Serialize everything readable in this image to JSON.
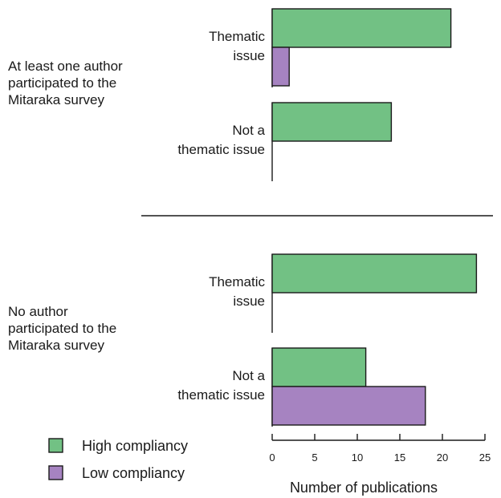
{
  "chart_data": {
    "type": "bar",
    "orientation": "horizontal",
    "xlabel": "Number of publications",
    "xlim": [
      0,
      25
    ],
    "xticks": [
      0,
      5,
      10,
      15,
      20,
      25
    ],
    "grid": false,
    "legend_position": "bottom-left",
    "colors": {
      "High compliancy": "#72c184",
      "Low compliancy": "#a683c1"
    },
    "legend": [
      "High compliancy",
      "Low compliancy"
    ],
    "groups": [
      {
        "label_lines": [
          "At least one author",
          "participated to the",
          "Mitaraka survey"
        ],
        "categories": [
          {
            "label_lines": [
              "Thematic",
              "issue"
            ],
            "values": {
              "High compliancy": 21,
              "Low compliancy": 2
            }
          },
          {
            "label_lines": [
              "Not a",
              "thematic issue"
            ],
            "values": {
              "High compliancy": 14,
              "Low compliancy": 0
            }
          }
        ]
      },
      {
        "label_lines": [
          "No author",
          "participated to the",
          "Mitaraka survey"
        ],
        "categories": [
          {
            "label_lines": [
              "Thematic",
              "issue"
            ],
            "values": {
              "High compliancy": 24,
              "Low compliancy": 0
            }
          },
          {
            "label_lines": [
              "Not a",
              "thematic issue"
            ],
            "values": {
              "High compliancy": 11,
              "Low compliancy": 18
            }
          }
        ]
      }
    ]
  }
}
